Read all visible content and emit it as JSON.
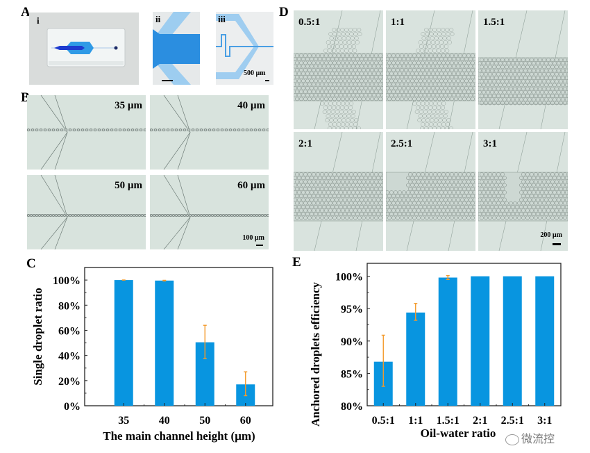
{
  "panels": {
    "A": {
      "label": "A",
      "subpanels": [
        {
          "label": "i"
        },
        {
          "label": "ii"
        },
        {
          "label": "iii",
          "scale_bar": "500 µm"
        }
      ]
    },
    "B": {
      "label": "B",
      "images": [
        {
          "label": "35 µm"
        },
        {
          "label": "40 µm"
        },
        {
          "label": "50 µm"
        },
        {
          "label": "60 µm",
          "scale_bar": "100 µm"
        }
      ]
    },
    "C": {
      "label": "C"
    },
    "D": {
      "label": "D",
      "images": [
        {
          "label": "0.5:1"
        },
        {
          "label": "1:1"
        },
        {
          "label": "1.5:1"
        },
        {
          "label": "2:1"
        },
        {
          "label": "2.5:1"
        },
        {
          "label": "3:1",
          "scale_bar": "200 µm"
        }
      ]
    },
    "E": {
      "label": "E"
    }
  },
  "colors": {
    "bar": "#0895e0",
    "error": "#f39a2b",
    "photo_bg": "#dce7e2",
    "chip_blue": "#2f8fe0",
    "channel_blue": "#8ec6ee"
  },
  "watermark": "微流控",
  "chart_data": [
    {
      "id": "C",
      "type": "bar",
      "categories": [
        "35",
        "40",
        "50",
        "60"
      ],
      "values": [
        100,
        99.6,
        50.5,
        17
      ],
      "error_high": [
        100,
        99.8,
        64,
        27
      ],
      "error_low": [
        100,
        99.3,
        37.5,
        8
      ],
      "xlabel": "The main channel height (µm)",
      "ylabel": "Single droplet ratio",
      "ylim": [
        0,
        110
      ],
      "yticks": [
        0,
        20,
        40,
        60,
        80,
        100
      ],
      "ytick_labels": [
        "0%",
        "20%",
        "40%",
        "60%",
        "80%",
        "100%"
      ],
      "grid": false
    },
    {
      "id": "E",
      "type": "bar",
      "categories": [
        "0.5:1",
        "1:1",
        "1.5:1",
        "2:1",
        "2.5:1",
        "3:1"
      ],
      "values": [
        86.8,
        94.4,
        99.8,
        100,
        100,
        100
      ],
      "error_high": [
        90.9,
        95.8,
        100.1,
        100,
        100,
        100
      ],
      "error_low": [
        83.0,
        93.2,
        99.5,
        100,
        100,
        100
      ],
      "xlabel": "Oil-water ratio",
      "ylabel": "Anchored droplets efficiency",
      "ylim": [
        80,
        102
      ],
      "yticks": [
        80,
        85,
        90,
        95,
        100
      ],
      "ytick_labels": [
        "80%",
        "85%",
        "90%",
        "95%",
        "100%"
      ],
      "grid": false
    }
  ]
}
